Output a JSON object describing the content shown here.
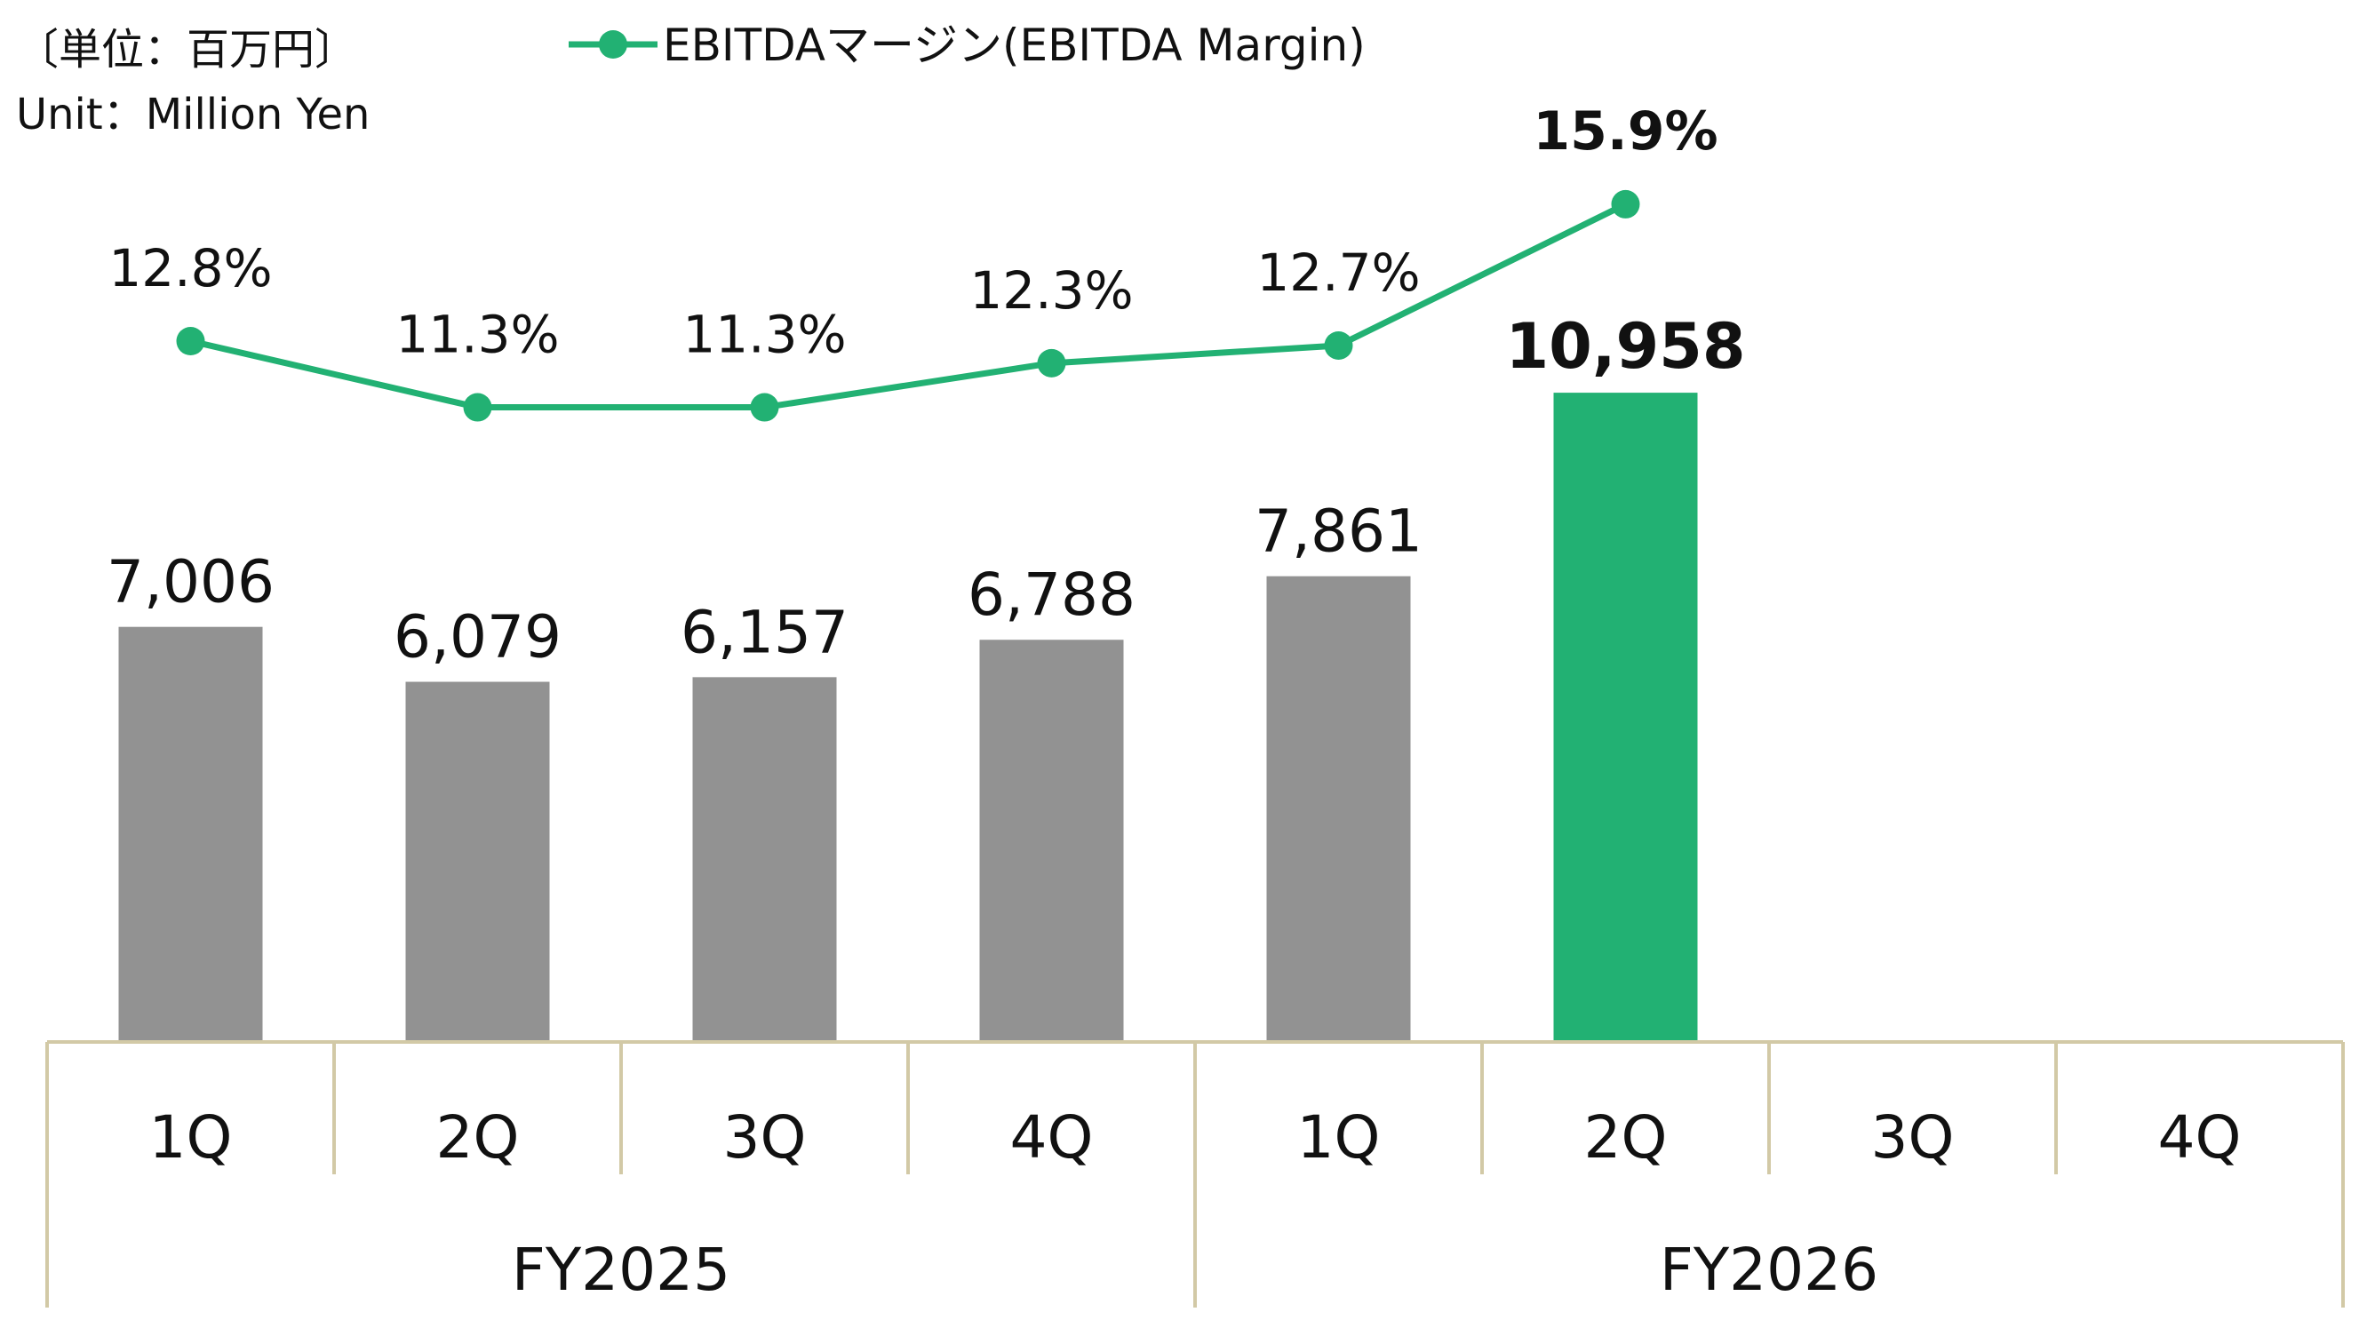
{
  "unit_note": {
    "line1": "〔単位：百万円〕",
    "line2": "Unit：Million Yen"
  },
  "chart_data": {
    "type": "bar",
    "categories": [
      "1Q",
      "2Q",
      "3Q",
      "4Q",
      "1Q",
      "2Q",
      "3Q",
      "4Q"
    ],
    "groups": [
      {
        "label": "FY2025",
        "categories": [
          "1Q",
          "2Q",
          "3Q",
          "4Q"
        ]
      },
      {
        "label": "FY2026",
        "categories": [
          "1Q",
          "2Q",
          "3Q",
          "4Q"
        ]
      }
    ],
    "bars": {
      "values": [
        7006,
        6079,
        6157,
        6788,
        7861,
        10958,
        null,
        null
      ],
      "labels": [
        "7,006",
        "6,079",
        "6,157",
        "6,788",
        "7,861",
        "10,958",
        "",
        ""
      ],
      "highlight_index": 5
    },
    "line": {
      "name": "EBITDAマージン(EBITDA Margin)",
      "values": [
        12.8,
        11.3,
        11.3,
        12.3,
        12.7,
        15.9,
        null,
        null
      ],
      "labels": [
        "12.8%",
        "11.3%",
        "11.3%",
        "12.3%",
        "12.7%",
        "15.9%",
        "",
        ""
      ],
      "highlight_index": 5
    },
    "legend_position": "top",
    "grid": false,
    "colors": {
      "bar": "#929292",
      "bar_highlight": "#22b173",
      "line": "#22b173",
      "axis": "#d2c9a6"
    }
  }
}
